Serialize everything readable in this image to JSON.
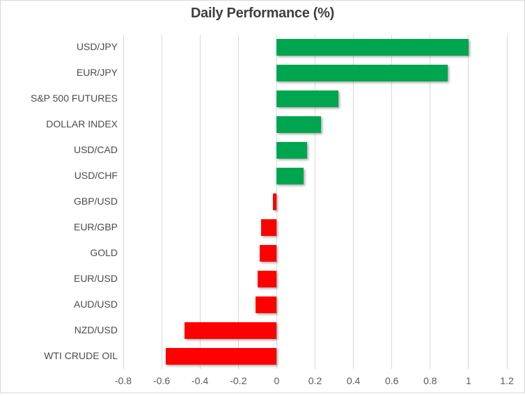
{
  "chart_data": {
    "type": "bar",
    "orientation": "horizontal",
    "title": "Daily Performance (%)",
    "categories": [
      "USD/JPY",
      "EUR/JPY",
      "S&P 500 FUTURES",
      "DOLLAR INDEX",
      "USD/CAD",
      "USD/CHF",
      "GBP/USD",
      "EUR/GBP",
      "GOLD",
      "EUR/USD",
      "AUD/USD",
      "NZD/USD",
      "WTI CRUDE OIL"
    ],
    "values": [
      1.0,
      0.89,
      0.32,
      0.23,
      0.16,
      0.14,
      -0.02,
      -0.08,
      -0.09,
      -0.1,
      -0.11,
      -0.48,
      -0.58
    ],
    "xlabel": "",
    "ylabel": "",
    "xlim": [
      -0.8,
      1.2
    ],
    "x_ticks": [
      -0.8,
      -0.6,
      -0.4,
      -0.2,
      0,
      0.2,
      0.4,
      0.6,
      0.8,
      1,
      1.2
    ],
    "x_tick_labels": [
      "-0.8",
      "-0.6",
      "-0.4",
      "-0.2",
      "0",
      "0.2",
      "0.4",
      "0.6",
      "0.8",
      "1",
      "1.2"
    ],
    "grid": true,
    "legend_position": "none",
    "colors": {
      "positive": "#00A64F",
      "negative": "#FF0000",
      "gridline": "#D9D9D9",
      "frame": "#D9D9D9",
      "title_text": "#3F3F3F",
      "category_text": "#4A4A4A",
      "tick_text": "#595959"
    }
  }
}
